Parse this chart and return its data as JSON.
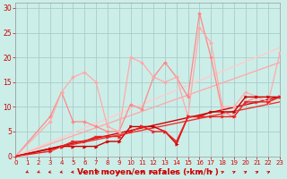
{
  "background_color": "#cceee8",
  "grid_color": "#aacccc",
  "xlabel": "Vent moyen/en rafales ( km/h )",
  "xlabel_color": "#cc0000",
  "xlabel_fontsize": 6.5,
  "tick_color": "#cc0000",
  "ylim": [
    0,
    31
  ],
  "xlim": [
    0,
    23
  ],
  "yticks": [
    0,
    5,
    10,
    15,
    20,
    25,
    30
  ],
  "xticks": [
    0,
    1,
    2,
    3,
    4,
    5,
    6,
    7,
    8,
    9,
    10,
    11,
    12,
    13,
    14,
    15,
    16,
    17,
    18,
    19,
    20,
    21,
    22,
    23
  ],
  "series": [
    {
      "x": [
        0,
        3,
        4,
        5,
        6,
        7,
        8,
        9,
        10,
        11,
        12,
        13,
        14,
        15,
        16,
        17,
        18,
        19,
        20,
        21,
        22,
        23
      ],
      "y": [
        0,
        8,
        13,
        7,
        7,
        6,
        5,
        5,
        10.5,
        9.5,
        16,
        19,
        16,
        12,
        29,
        20,
        9,
        8,
        11,
        12,
        11,
        12
      ],
      "color": "#ff8888",
      "linewidth": 0.9,
      "marker": "D",
      "markersize": 2.0
    },
    {
      "x": [
        0,
        3,
        4,
        5,
        6,
        7,
        8,
        9,
        10,
        11,
        12,
        13,
        14,
        15,
        16,
        17,
        18,
        19,
        20,
        21,
        22,
        23
      ],
      "y": [
        0,
        7,
        13,
        16,
        17,
        15,
        6,
        5,
        20,
        19,
        16,
        15,
        16,
        8,
        26,
        23,
        10,
        10,
        13,
        12,
        11,
        21
      ],
      "color": "#ffaaaa",
      "linewidth": 0.9,
      "marker": "D",
      "markersize": 2.0
    },
    {
      "x": [
        0,
        23
      ],
      "y": [
        0,
        19
      ],
      "color": "#ffaaaa",
      "linewidth": 1.0,
      "marker": null
    },
    {
      "x": [
        0,
        23
      ],
      "y": [
        0,
        22
      ],
      "color": "#ffcccc",
      "linewidth": 1.0,
      "marker": null
    },
    {
      "x": [
        0,
        3,
        4,
        5,
        6,
        7,
        8,
        9,
        10,
        11,
        12,
        13,
        14,
        15,
        16,
        17,
        18,
        19,
        20,
        21,
        22,
        23
      ],
      "y": [
        0,
        1.5,
        2,
        2,
        2,
        2,
        3,
        3,
        6,
        6,
        6,
        5,
        2.5,
        8,
        8,
        9,
        9,
        9,
        12,
        12,
        12,
        12
      ],
      "color": "#cc0000",
      "linewidth": 1.0,
      "marker": ">",
      "markersize": 2.5
    },
    {
      "x": [
        0,
        3,
        4,
        5,
        6,
        7,
        8,
        9,
        10,
        11,
        12,
        13,
        14,
        15,
        16,
        17,
        18,
        19,
        20,
        21,
        22,
        23
      ],
      "y": [
        0,
        1,
        2,
        3,
        3,
        4,
        4,
        4,
        5,
        6,
        5,
        5,
        3,
        8,
        8,
        8,
        8,
        8,
        11,
        11,
        11,
        12
      ],
      "color": "#ee2222",
      "linewidth": 1.0,
      "marker": ">",
      "markersize": 2.5
    },
    {
      "x": [
        0,
        23
      ],
      "y": [
        0,
        12
      ],
      "color": "#cc0000",
      "linewidth": 1.0,
      "marker": null
    },
    {
      "x": [
        0,
        23
      ],
      "y": [
        0,
        11
      ],
      "color": "#ee3333",
      "linewidth": 1.0,
      "marker": null
    }
  ],
  "wind_arrows": {
    "angles_deg": [
      225,
      225,
      210,
      210,
      195,
      195,
      180,
      45,
      60,
      90,
      45,
      0,
      45,
      45,
      45,
      45,
      45,
      45,
      45,
      45,
      45,
      45
    ],
    "x_positions": [
      1,
      2,
      3,
      4,
      5,
      6,
      7,
      8,
      9,
      10,
      11,
      12,
      13,
      14,
      15,
      16,
      17,
      18,
      19,
      20,
      21,
      22
    ]
  }
}
